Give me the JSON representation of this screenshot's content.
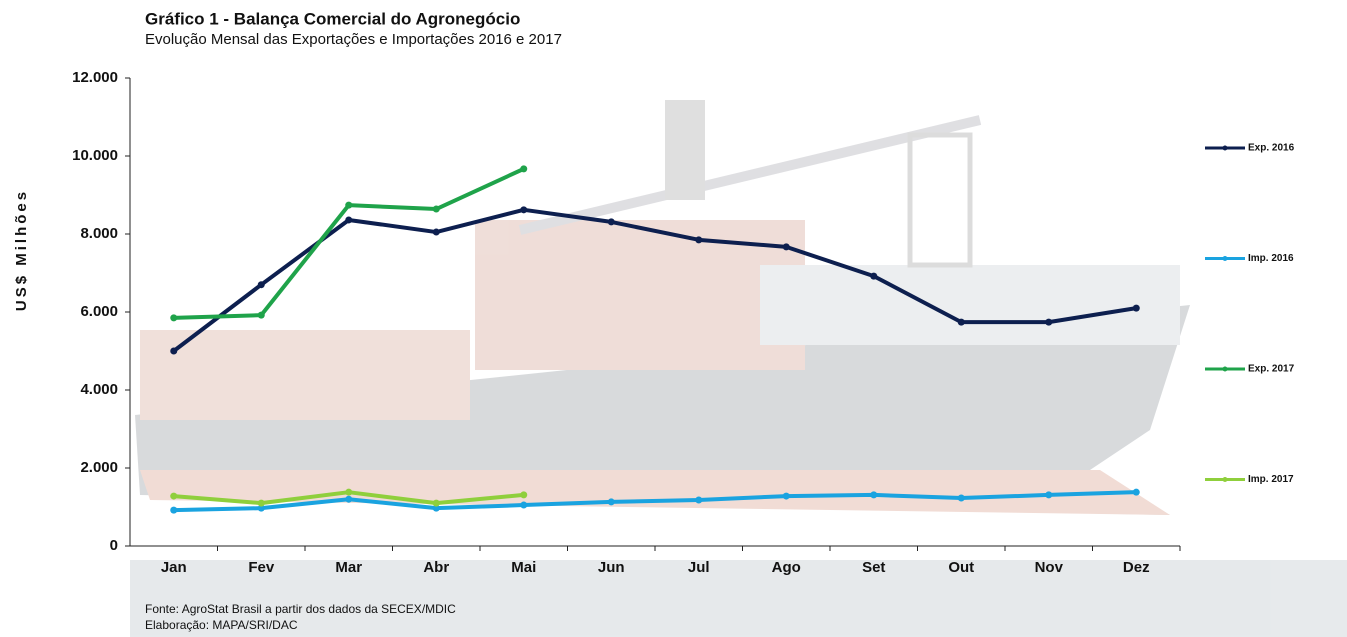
{
  "chart_data": {
    "type": "line",
    "title": "Gráfico 1 - Balança Comercial do Agronegócio",
    "subtitle": "Evolução Mensal das Exportações e Importações 2016 e 2017",
    "y_label": "US$ Milhões",
    "source": "Fonte: AgroStat Brasil a partir dos dados da SECEX/MDIC",
    "credit": "Elaboração: MAPA/SRI/DAC",
    "categories": [
      "Jan",
      "Fev",
      "Mar",
      "Abr",
      "Mai",
      "Jun",
      "Jul",
      "Ago",
      "Set",
      "Out",
      "Nov",
      "Dez"
    ],
    "series": [
      {
        "name": "Exp. 2016",
        "color": "#0d1f4f",
        "values": [
          5000,
          6700,
          8360,
          8050,
          8620,
          8310,
          7850,
          7670,
          6920,
          5740,
          5740,
          6100
        ]
      },
      {
        "name": "Imp. 2016",
        "color": "#1aa3e0",
        "values": [
          920,
          970,
          1200,
          970,
          1050,
          1130,
          1180,
          1280,
          1310,
          1230,
          1310,
          1380
        ]
      },
      {
        "name": "Exp. 2017",
        "color": "#1fa34a",
        "values": [
          5850,
          5920,
          8740,
          8640,
          9670,
          null,
          null,
          null,
          null,
          null,
          null,
          null
        ]
      },
      {
        "name": "Imp. 2017",
        "color": "#8fcf3c",
        "values": [
          1280,
          1100,
          1380,
          1100,
          1310,
          null,
          null,
          null,
          null,
          null,
          null,
          null
        ]
      }
    ],
    "ylim": [
      0,
      12000
    ],
    "yticks": [
      0,
      {
        "value": 2000,
        "label": "2.000"
      },
      {
        "value": 4000,
        "label": "4.000"
      },
      {
        "value": 6000,
        "label": "6.000"
      },
      {
        "value": 8000,
        "label": "8.000"
      },
      {
        "value": 10000,
        "label": "10.000"
      },
      {
        "value": 12000,
        "label": "12.000"
      }
    ],
    "legend": "right"
  }
}
